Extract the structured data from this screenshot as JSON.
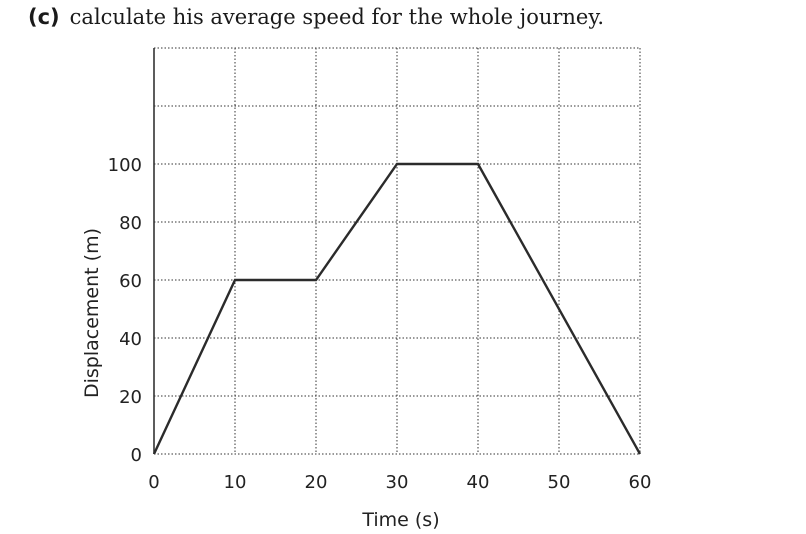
{
  "question": {
    "label": "(c)",
    "text": "calculate his average speed for the whole journey."
  },
  "chart_data": {
    "type": "line",
    "title": "",
    "xlabel": "Time (s)",
    "ylabel": "Displacement (m)",
    "xlim": [
      0,
      60
    ],
    "ylim": [
      0,
      140
    ],
    "x_ticks": [
      0,
      10,
      20,
      30,
      40,
      50,
      60
    ],
    "y_ticks": [
      0,
      20,
      40,
      60,
      80,
      100
    ],
    "grid": true,
    "grid_x_step": 10,
    "grid_y_step": 20,
    "legend": "none",
    "series": [
      {
        "points": [
          {
            "x": 0,
            "y": 0
          },
          {
            "x": 10,
            "y": 60
          },
          {
            "x": 20,
            "y": 60
          },
          {
            "x": 30,
            "y": 100
          },
          {
            "x": 40,
            "y": 100
          },
          {
            "x": 60,
            "y": 0
          }
        ]
      }
    ],
    "colors": {
      "line": "#2b2b2b",
      "grid": "#333333",
      "text": "#222222"
    }
  }
}
